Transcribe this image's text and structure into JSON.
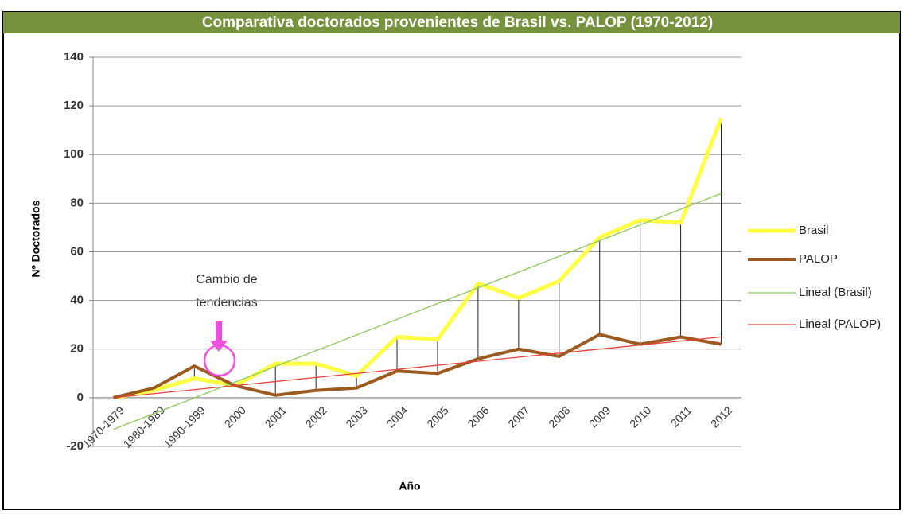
{
  "chart_data": {
    "type": "line",
    "title": "Comparativa doctorados provenientes de Brasil vs. PALOP (1970-2012)",
    "x_label": "Año",
    "y_label": "Nº Doctorados",
    "categories": [
      "1970-1979",
      "1980-1989",
      "1990-1999",
      "2000",
      "2001",
      "2002",
      "2003",
      "2004",
      "2005",
      "2006",
      "2007",
      "2008",
      "2009",
      "2010",
      "2011",
      "2012"
    ],
    "series": [
      {
        "name": "Brasil",
        "color": "#ffff44",
        "values": [
          0,
          3,
          8,
          5,
          14,
          14,
          9,
          25,
          24,
          47,
          41,
          48,
          66,
          73,
          72,
          115
        ]
      },
      {
        "name": "PALOP",
        "color": "#9c5a1e",
        "values": [
          0,
          4,
          13,
          5,
          1,
          3,
          4,
          11,
          10,
          16,
          20,
          17,
          26,
          22,
          25,
          22
        ]
      }
    ],
    "trendlines": [
      {
        "name": "Lineal (Brasil)",
        "color": "#8dc85a",
        "start": -13,
        "end": 84
      },
      {
        "name": "Lineal (PALOP)",
        "color": "#e8403a",
        "start": 0,
        "end": 25
      }
    ],
    "annotation": [
      "Cambio de",
      "tendencias"
    ],
    "ylim": [
      -20,
      140
    ],
    "yticks": [
      -20,
      0,
      20,
      40,
      60,
      80,
      100,
      120,
      140
    ],
    "grid": true,
    "legend": "right"
  }
}
